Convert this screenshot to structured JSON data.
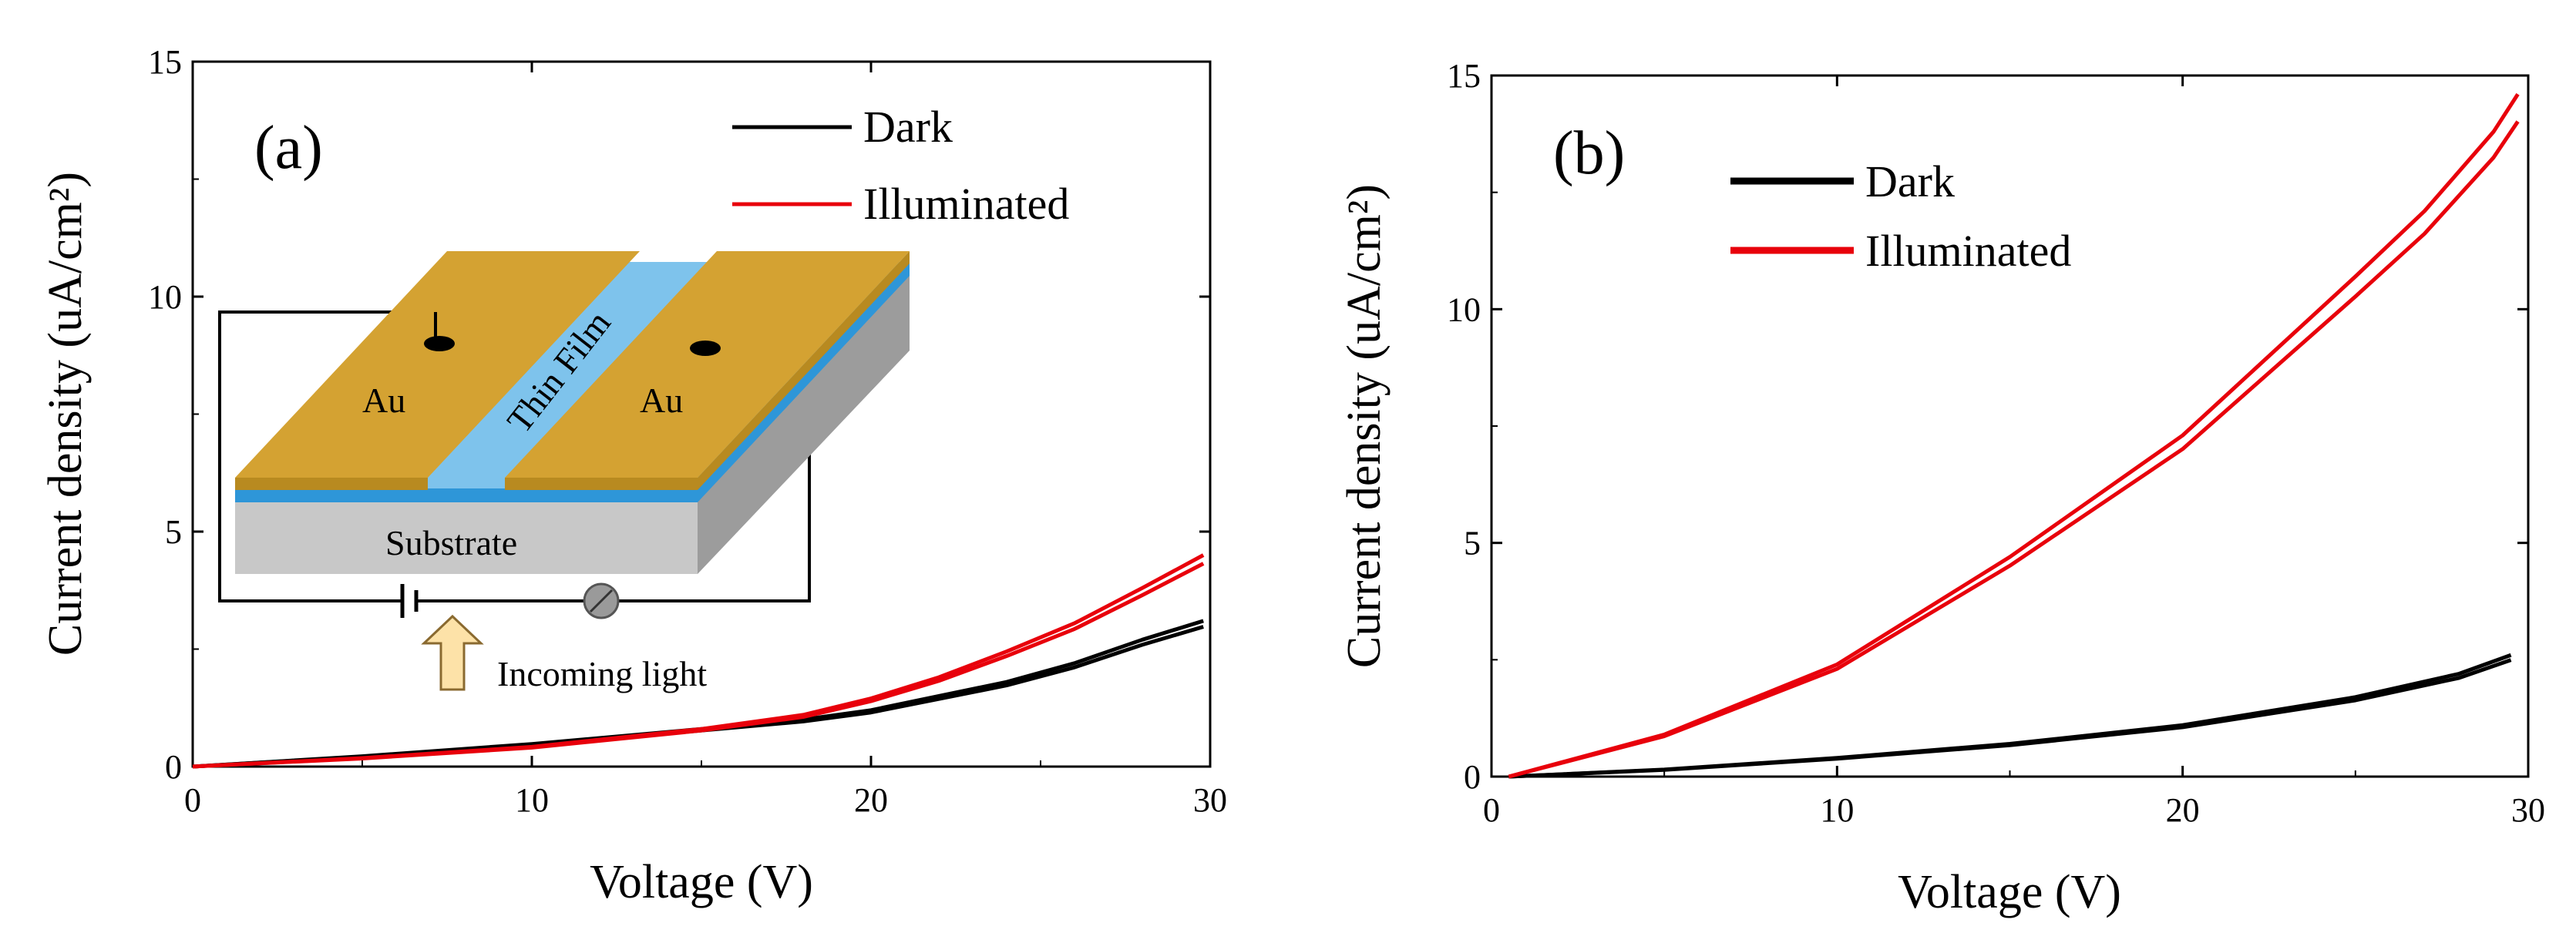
{
  "chart_data": [
    {
      "type": "line",
      "panel_label": "(a)",
      "xlabel": "Voltage (V)",
      "ylabel": "Current density (uA/cm²)",
      "xlim": [
        0,
        30
      ],
      "ylim": [
        0,
        15
      ],
      "xticks": [
        "0",
        "10",
        "20",
        "30"
      ],
      "yticks": [
        "0",
        "5",
        "10",
        "15"
      ],
      "legend": [
        "Dark",
        "Illuminated"
      ],
      "series": [
        {
          "name": "Dark",
          "color": "#000000",
          "x": [
            0,
            5,
            10,
            15,
            18,
            20,
            22,
            24,
            26,
            28,
            29.8
          ],
          "y": [
            0,
            0.22,
            0.48,
            0.8,
            1.0,
            1.2,
            1.5,
            1.8,
            2.2,
            2.7,
            3.1
          ]
        },
        {
          "name": "Illuminated",
          "color": "#e8000b",
          "x": [
            0,
            5,
            10,
            15,
            18,
            20,
            22,
            24,
            26,
            28,
            29.8
          ],
          "y": [
            0,
            0.18,
            0.42,
            0.8,
            1.1,
            1.45,
            1.9,
            2.45,
            3.05,
            3.8,
            4.5
          ]
        }
      ],
      "inset": {
        "electrode_left": "Au",
        "electrode_right": "Au",
        "film_label": "Thin Film",
        "substrate_label": "Substrate",
        "light_label": "Incoming light",
        "colors": {
          "gold": "#d4a232",
          "gold_top": "#deb040",
          "film": "#4ea7e0",
          "film_light": "#7ec3ec",
          "substrate_front": "#c8c8c8",
          "substrate_side": "#9c9c9c",
          "arrow": "#fde2a8"
        }
      }
    },
    {
      "type": "line",
      "panel_label": "(b)",
      "xlabel": "Voltage (V)",
      "ylabel": "Current density (uA/cm²)",
      "xlim": [
        0,
        30
      ],
      "ylim": [
        0,
        15
      ],
      "xticks": [
        "0",
        "10",
        "20",
        "30"
      ],
      "yticks": [
        "0",
        "5",
        "10",
        "15"
      ],
      "legend": [
        "Dark",
        "Illuminated"
      ],
      "series": [
        {
          "name": "Dark",
          "color": "#000000",
          "x": [
            0.5,
            5,
            10,
            15,
            20,
            25,
            28,
            29.5
          ],
          "y": [
            0,
            0.15,
            0.4,
            0.7,
            1.1,
            1.7,
            2.2,
            2.6
          ]
        },
        {
          "name": "Illuminated",
          "color": "#e8000b",
          "x": [
            0.5,
            2,
            5,
            10,
            15,
            20,
            25,
            27,
            29,
            29.7
          ],
          "y": [
            0,
            0.3,
            0.9,
            2.4,
            4.7,
            7.3,
            10.7,
            12.1,
            13.8,
            14.6
          ]
        }
      ]
    }
  ]
}
